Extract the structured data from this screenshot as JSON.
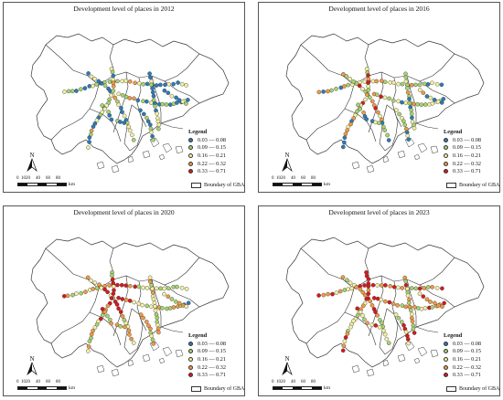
{
  "figure": {
    "legend_title": "Legend",
    "boundary_label": "Boundary of GBA",
    "north_label": "N",
    "scale_ticks": [
      "0",
      "10",
      "20",
      "40",
      "60",
      "80"
    ],
    "scale_unit": "km"
  },
  "classes": [
    {
      "label": "0.03 — 0.08",
      "color": "#2b7bb9"
    },
    {
      "label": "0.09 — 0.15",
      "color": "#a7d46f"
    },
    {
      "label": "0.16 — 0.21",
      "color": "#f4f0a4"
    },
    {
      "label": "0.22 — 0.32",
      "color": "#f09a45"
    },
    {
      "label": "0.33 — 0.71",
      "color": "#d7191c"
    }
  ],
  "panels": [
    {
      "title": "Development level of places in 2012",
      "year": 2012
    },
    {
      "title": "Development level of places in 2016",
      "year": 2016
    },
    {
      "title": "Development level of places in 2020",
      "year": 2020
    },
    {
      "title": "Development level of places in 2023",
      "year": 2023
    }
  ],
  "colors": {
    "boundary": "#333333",
    "point_outline": "#333333"
  }
}
